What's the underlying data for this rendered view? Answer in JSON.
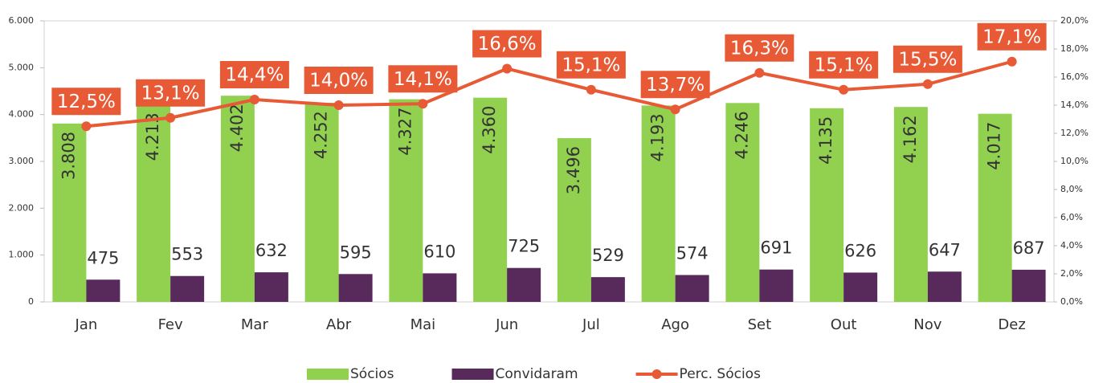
{
  "chart_data": {
    "type": "bar",
    "categories": [
      "Jan",
      "Fev",
      "Mar",
      "Abr",
      "Mai",
      "Jun",
      "Jul",
      "Ago",
      "Set",
      "Out",
      "Nov",
      "Dez"
    ],
    "series": [
      {
        "name": "Sócios",
        "color": "#92d050",
        "values": [
          3808,
          4213,
          4402,
          4252,
          4327,
          4360,
          3496,
          4193,
          4246,
          4135,
          4162,
          4017
        ],
        "value_labels": [
          "3.808",
          "4.213",
          "4.402",
          "4.252",
          "4.327",
          "4.360",
          "3.496",
          "4.193",
          "4.246",
          "4.135",
          "4.162",
          "4.017"
        ]
      },
      {
        "name": "Convidaram",
        "color": "#582a5c",
        "values": [
          475,
          553,
          632,
          595,
          610,
          725,
          529,
          574,
          691,
          626,
          647,
          687
        ]
      },
      {
        "name": "Perc. Sócios",
        "color": "#e85a35",
        "type": "line",
        "axis": "y2",
        "values": [
          12.5,
          13.1,
          14.4,
          14.0,
          14.1,
          16.6,
          15.1,
          13.7,
          16.3,
          15.1,
          15.5,
          17.1
        ],
        "value_labels": [
          "12,5%",
          "13,1%",
          "14,4%",
          "14,0%",
          "14,1%",
          "16,6%",
          "15,1%",
          "13,7%",
          "16,3%",
          "15,1%",
          "15,5%",
          "17,1%"
        ]
      }
    ],
    "ylim": [
      0,
      6000
    ],
    "yticks": [
      0,
      {
        "value": 1000,
        "label": "1.000"
      },
      {
        "value": 2000,
        "label": "2.000"
      },
      {
        "value": 3000,
        "label": "3.000"
      },
      {
        "value": 4000,
        "label": "4.000"
      },
      {
        "value": 5000,
        "label": "5.000"
      },
      {
        "value": 6000,
        "label": "6.000"
      }
    ],
    "y2lim": [
      0,
      20
    ],
    "y2ticks": [
      {
        "value": 0,
        "label": "0,0%"
      },
      {
        "value": 2,
        "label": "2,0%"
      },
      {
        "value": 4,
        "label": "4,0%"
      },
      {
        "value": 6,
        "label": "6,0%"
      },
      {
        "value": 8,
        "label": "8,0%"
      },
      {
        "value": 10,
        "label": "10,0%"
      },
      {
        "value": 12,
        "label": "12,0%"
      },
      {
        "value": 14,
        "label": "14,0%"
      },
      {
        "value": 16,
        "label": "16,0%"
      },
      {
        "value": 18,
        "label": "18,0%"
      },
      {
        "value": 20,
        "label": "20,0%"
      }
    ],
    "legend": "bottom"
  }
}
